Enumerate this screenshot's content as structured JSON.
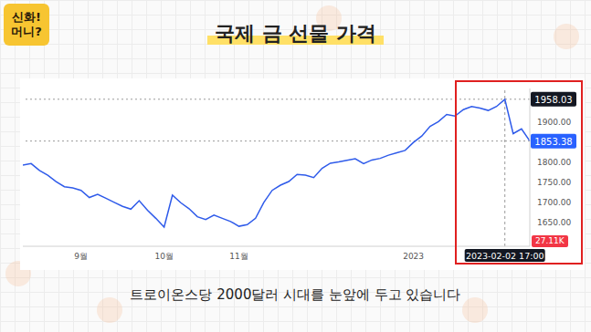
{
  "title": "국제 금 선물 가격",
  "subtitle": "트로이온스당 2000달러 시대를 눈앞에 두고 있습니다",
  "logo": [
    "신화!",
    "머니?"
  ],
  "chart_data": {
    "type": "line",
    "categories": [
      null,
      null,
      null,
      null,
      null,
      null,
      null,
      "9월",
      null,
      null,
      null,
      null,
      null,
      null,
      null,
      null,
      null,
      "10월",
      null,
      null,
      null,
      null,
      null,
      null,
      null,
      null,
      "11월",
      null,
      null,
      null,
      null,
      null,
      null,
      null,
      null,
      null,
      null,
      null,
      null,
      null,
      null,
      null,
      null,
      null,
      null,
      null,
      null,
      "2023",
      null,
      null,
      null,
      null,
      null,
      null,
      null,
      null,
      null,
      null,
      null,
      null,
      null,
      null
    ],
    "values": [
      1793,
      1797,
      1780,
      1768,
      1752,
      1739,
      1736,
      1730,
      1712,
      1720,
      1710,
      1700,
      1690,
      1683,
      1704,
      1680,
      1660,
      1638,
      1718,
      1699,
      1684,
      1664,
      1657,
      1668,
      1660,
      1652,
      1640,
      1644,
      1660,
      1700,
      1730,
      1743,
      1752,
      1770,
      1768,
      1762,
      1785,
      1798,
      1801,
      1805,
      1809,
      1797,
      1806,
      1810,
      1818,
      1824,
      1830,
      1850,
      1866,
      1890,
      1902,
      1920,
      1916,
      1932,
      1940,
      1936,
      1930,
      1940,
      1958.03,
      1872,
      1884,
      1853.38
    ],
    "color": "#2f5bea",
    "ylim": [
      1590,
      1985
    ],
    "yticks": [
      {
        "value": 1650,
        "label": "1650.00"
      },
      {
        "value": 1700,
        "label": "1700.00"
      },
      {
        "value": 1750,
        "label": "1750.00"
      },
      {
        "value": 1800,
        "label": "1800.00"
      },
      {
        "value": 1900,
        "label": "1900.00"
      }
    ],
    "grid": false,
    "price_lines": [
      {
        "value": 1958.03,
        "color": "#131722"
      },
      {
        "value": 1853.38,
        "color": "#2962ff"
      }
    ],
    "crosshair": {
      "position": 58,
      "label": "2023-02-02 17:00"
    },
    "annotations": [
      {
        "text": "27.11K",
        "color": "#f23645"
      }
    ]
  }
}
